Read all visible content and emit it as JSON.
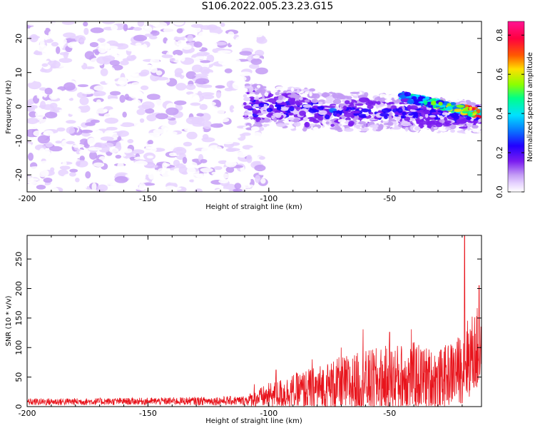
{
  "title": "S106.2022.005.23.23.G15",
  "colors": {
    "snr_line": "#e8141c",
    "axis": "#000000",
    "colormap": [
      "#ffffff",
      "#e6d2ff",
      "#c39bf5",
      "#7a1cf0",
      "#2200ff",
      "#0a6bff",
      "#00e1ff",
      "#00ff88",
      "#8cff00",
      "#ffdf00",
      "#ff5a00",
      "#ff0040",
      "#ff1493"
    ]
  },
  "chart_data": [
    {
      "type": "heatmap",
      "name": "spectrogram",
      "xlabel": "Height of straight line (km)",
      "ylabel": "Frequency (Hz)",
      "xlim": [
        -200,
        -12
      ],
      "ylim": [
        -25,
        25
      ],
      "xticks": [
        -200,
        -150,
        -100,
        -50
      ],
      "yticks": [
        -20,
        -10,
        0,
        10,
        20
      ],
      "colorbar": {
        "label": "Normalized spectral amplitude",
        "range": [
          0,
          0.87
        ],
        "ticks": [
          "0.0",
          "0.2",
          "0.4",
          "0.6",
          "0.8"
        ]
      },
      "features": [
        {
          "region": "diffuse noise",
          "x_range": [
            -200,
            -108
          ],
          "freq_range": [
            -25,
            25
          ],
          "amplitude": 0.1
        },
        {
          "region": "signal band",
          "x_from": -110,
          "x_to": -12,
          "freq_from": 0,
          "freq_to": -3,
          "width_hz": 5,
          "amplitude": 0.2
        },
        {
          "region": "strong signal tail",
          "x_from": -45,
          "x_to": -12,
          "freq_from": 3,
          "freq_to": -2,
          "amplitude": 0.6
        }
      ]
    },
    {
      "type": "line",
      "name": "snr",
      "xlabel": "Height of straight line (km)",
      "ylabel": "SNR (10 * v/v)",
      "xlim": [
        -200,
        -12
      ],
      "ylim": [
        0,
        290
      ],
      "xticks": [
        -200,
        -150,
        -100,
        -50
      ],
      "yticks": [
        0,
        50,
        100,
        150,
        200,
        250
      ],
      "profile": {
        "x": [
          -200,
          -150,
          -110,
          -100,
          -90,
          -80,
          -70,
          -60,
          -50,
          -40,
          -30,
          -25,
          -20,
          -18,
          -15,
          -12
        ],
        "typ": [
          8,
          9,
          10,
          18,
          25,
          30,
          35,
          40,
          45,
          50,
          45,
          55,
          65,
          80,
          90,
          100
        ],
        "amp": [
          6,
          6,
          8,
          22,
          30,
          40,
          50,
          55,
          60,
          60,
          50,
          55,
          60,
          70,
          70,
          80
        ]
      },
      "peaks": [
        {
          "x": -106,
          "y": 38
        },
        {
          "x": -97,
          "y": 62
        },
        {
          "x": -91,
          "y": 40
        },
        {
          "x": -82,
          "y": 80
        },
        {
          "x": -70,
          "y": 100
        },
        {
          "x": -61,
          "y": 131
        },
        {
          "x": -50,
          "y": 126
        },
        {
          "x": -41,
          "y": 131
        },
        {
          "x": -19,
          "y": 290
        },
        {
          "x": -13,
          "y": 205
        }
      ]
    }
  ]
}
